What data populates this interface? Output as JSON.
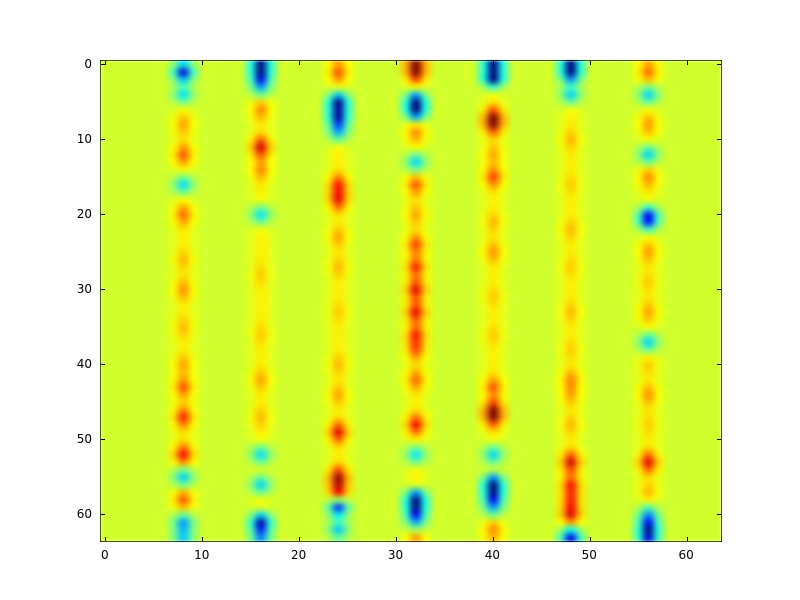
{
  "figure": {
    "background_color": "#ffffff",
    "frame_color": "#000000",
    "tick_label_color": "#000000"
  },
  "chart_data": {
    "type": "heatmap",
    "title": "",
    "xlabel": "",
    "ylabel": "",
    "grid": false,
    "legend": null,
    "colormap": "jet",
    "interpolation": "smooth",
    "width": 64,
    "height": 64,
    "x_range": [
      -0.5,
      63.5
    ],
    "y_range": [
      63.5,
      -0.5
    ],
    "y_axis_inverted": true,
    "x_ticks": [
      0,
      10,
      20,
      30,
      40,
      50,
      60
    ],
    "y_ticks": [
      0,
      10,
      20,
      30,
      40,
      50,
      60
    ],
    "background_value": 0.58,
    "background_color_hex": "#d1ff2e",
    "stripe_baseline": 0.64,
    "stripe_columns": [
      8,
      16,
      24,
      32,
      40,
      48,
      56
    ],
    "stripes": [
      {
        "col": 8,
        "anomalies": [
          [
            1,
            0.08
          ],
          [
            4,
            0.35
          ],
          [
            8,
            0.72
          ],
          [
            12,
            0.8
          ],
          [
            16,
            0.34
          ],
          [
            20,
            0.78
          ],
          [
            26,
            0.7
          ],
          [
            30,
            0.74
          ],
          [
            35,
            0.7
          ],
          [
            40,
            0.72
          ],
          [
            43,
            0.8
          ],
          [
            47,
            0.85
          ],
          [
            52,
            0.88
          ],
          [
            55,
            0.32
          ],
          [
            58,
            0.8
          ],
          [
            61,
            0.3
          ],
          [
            63,
            0.35
          ]
        ]
      },
      {
        "col": 16,
        "anomalies": [
          [
            0,
            0.06
          ],
          [
            1,
            0.05
          ],
          [
            3,
            0.33
          ],
          [
            6,
            0.75
          ],
          [
            11,
            0.92
          ],
          [
            14,
            0.75
          ],
          [
            20,
            0.35
          ],
          [
            28,
            0.68
          ],
          [
            36,
            0.68
          ],
          [
            42,
            0.72
          ],
          [
            47,
            0.7
          ],
          [
            52,
            0.34
          ],
          [
            56,
            0.33
          ],
          [
            61,
            0.07
          ],
          [
            63,
            0.3
          ]
        ]
      },
      {
        "col": 24,
        "anomalies": [
          [
            1,
            0.8
          ],
          [
            5,
            0.05
          ],
          [
            7,
            0.1
          ],
          [
            9,
            0.33
          ],
          [
            16,
            0.85
          ],
          [
            18,
            0.88
          ],
          [
            23,
            0.72
          ],
          [
            27,
            0.7
          ],
          [
            33,
            0.68
          ],
          [
            40,
            0.7
          ],
          [
            44,
            0.72
          ],
          [
            49,
            0.9
          ],
          [
            55,
            0.95
          ],
          [
            57,
            0.9
          ],
          [
            59,
            0.15
          ],
          [
            62,
            0.32
          ]
        ]
      },
      {
        "col": 32,
        "anomalies": [
          [
            0,
            0.97
          ],
          [
            1,
            0.9
          ],
          [
            5,
            0.06
          ],
          [
            6,
            0.05
          ],
          [
            9,
            0.75
          ],
          [
            13,
            0.33
          ],
          [
            16,
            0.8
          ],
          [
            20,
            0.72
          ],
          [
            24,
            0.82
          ],
          [
            27,
            0.85
          ],
          [
            30,
            0.9
          ],
          [
            33,
            0.9
          ],
          [
            36,
            0.85
          ],
          [
            38,
            0.8
          ],
          [
            42,
            0.78
          ],
          [
            48,
            0.88
          ],
          [
            52,
            0.35
          ],
          [
            58,
            0.05
          ],
          [
            59,
            0.06
          ],
          [
            61,
            0.33
          ],
          [
            63,
            0.75
          ]
        ]
      },
      {
        "col": 40,
        "anomalies": [
          [
            0,
            0.3
          ],
          [
            1,
            0.1
          ],
          [
            2,
            0.32
          ],
          [
            7,
            0.9
          ],
          [
            8,
            0.88
          ],
          [
            12,
            0.72
          ],
          [
            15,
            0.82
          ],
          [
            21,
            0.7
          ],
          [
            25,
            0.74
          ],
          [
            31,
            0.68
          ],
          [
            36,
            0.68
          ],
          [
            43,
            0.8
          ],
          [
            46,
            0.9
          ],
          [
            47,
            0.88
          ],
          [
            52,
            0.33
          ],
          [
            56,
            0.05
          ],
          [
            57,
            0.08
          ],
          [
            59,
            0.32
          ],
          [
            62,
            0.75
          ]
        ]
      },
      {
        "col": 48,
        "anomalies": [
          [
            0,
            0.1
          ],
          [
            1,
            0.08
          ],
          [
            4,
            0.33
          ],
          [
            10,
            0.7
          ],
          [
            16,
            0.68
          ],
          [
            22,
            0.7
          ],
          [
            27,
            0.68
          ],
          [
            33,
            0.7
          ],
          [
            38,
            0.68
          ],
          [
            42,
            0.75
          ],
          [
            44,
            0.72
          ],
          [
            48,
            0.7
          ],
          [
            53,
            0.92
          ],
          [
            56,
            0.85
          ],
          [
            58,
            0.82
          ],
          [
            60,
            0.9
          ],
          [
            63,
            0.1
          ]
        ]
      },
      {
        "col": 56,
        "anomalies": [
          [
            1,
            0.78
          ],
          [
            4,
            0.33
          ],
          [
            8,
            0.73
          ],
          [
            12,
            0.33
          ],
          [
            15,
            0.75
          ],
          [
            20,
            0.3
          ],
          [
            21,
            0.32
          ],
          [
            25,
            0.73
          ],
          [
            29,
            0.68
          ],
          [
            33,
            0.72
          ],
          [
            37,
            0.33
          ],
          [
            40,
            0.68
          ],
          [
            44,
            0.74
          ],
          [
            48,
            0.68
          ],
          [
            53,
            0.9
          ],
          [
            57,
            0.7
          ],
          [
            60,
            0.3
          ],
          [
            62,
            0.06
          ],
          [
            63,
            0.4
          ]
        ]
      }
    ]
  }
}
